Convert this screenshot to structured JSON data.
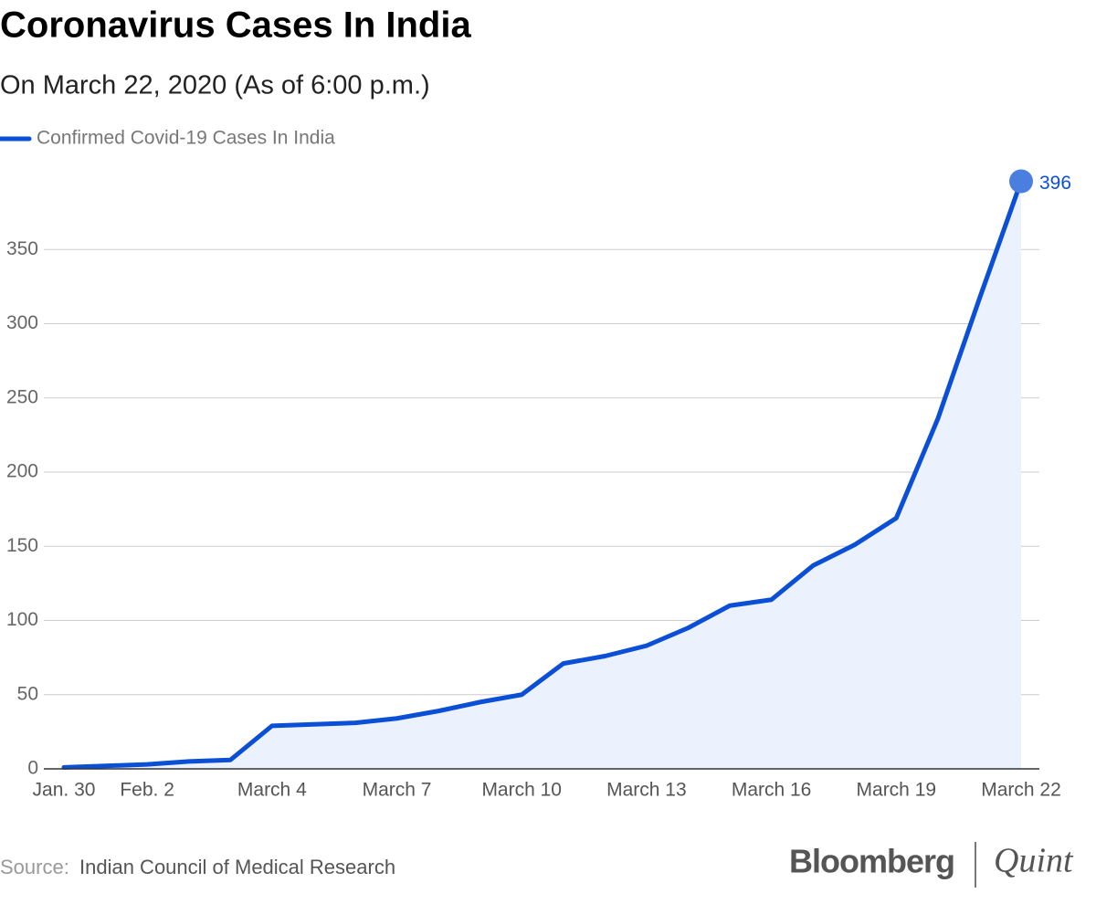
{
  "chart_data": {
    "type": "line",
    "title": "Coronavirus Cases In India",
    "subtitle": "On March 22, 2020 (As of 6:00 p.m.)",
    "categories": [
      "Jan. 30",
      null,
      "Feb. 2",
      null,
      null,
      "March 4",
      null,
      null,
      "March 7",
      null,
      null,
      "March 10",
      null,
      null,
      "March 13",
      null,
      null,
      "March 16",
      null,
      null,
      "March 19",
      null,
      null,
      "March 22"
    ],
    "series": [
      {
        "name": "Confirmed Covid-19 Cases In India",
        "color": "#0a4fd6",
        "area_color": "#ebf1fd",
        "values": [
          1,
          2,
          3,
          5,
          6,
          29,
          30,
          31,
          34,
          39,
          45,
          50,
          71,
          76,
          83,
          95,
          110,
          114,
          137,
          151,
          169,
          236,
          317,
          396
        ]
      }
    ],
    "ylim": [
      0,
      400
    ],
    "yticks": [
      0,
      50,
      100,
      150,
      200,
      250,
      300,
      350
    ],
    "grid": true,
    "source_label": "Source:",
    "source": "Indian Council of Medical Research",
    "logo": [
      "Bloomberg",
      "Quint"
    ]
  }
}
